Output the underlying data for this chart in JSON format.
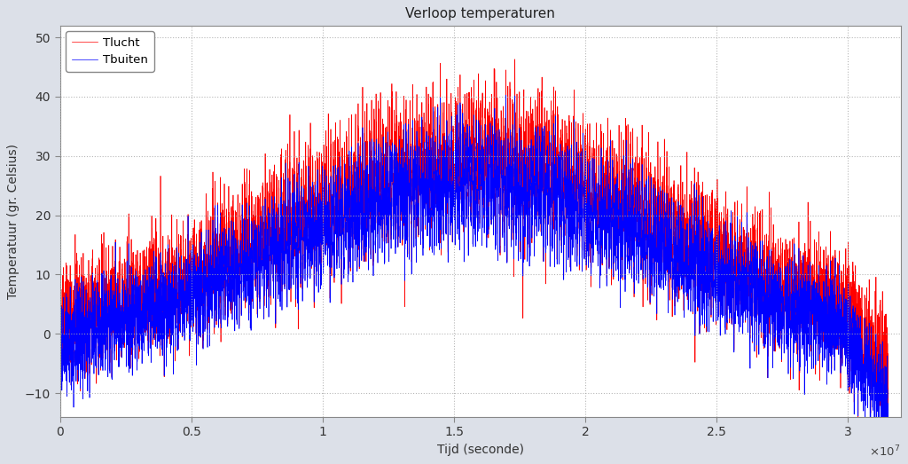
{
  "title": "Verloop temperaturen",
  "xlabel": "Tijd (seconde)",
  "ylabel": "Temperatuur (gr. Celsius)",
  "legend_tlucht": "Tlucht",
  "legend_tbuiten": "Tbuiten",
  "color_tlucht": "#FF0000",
  "color_tbuiten": "#0000FF",
  "xlim": [
    0,
    32000000.0
  ],
  "ylim": [
    -14,
    52
  ],
  "yticks": [
    -10,
    0,
    10,
    20,
    30,
    40,
    50
  ],
  "xticks": [
    0,
    5000000,
    10000000,
    15000000,
    20000000,
    25000000,
    30000000
  ],
  "xtick_labels": [
    "0",
    "0.5",
    "1",
    "1.5",
    "2",
    "2.5",
    "3"
  ],
  "background_color": "#dce0e8",
  "plot_bg_color": "#ffffff",
  "grid_color": "#aaaaaa",
  "n_points": 8760,
  "seed": 12345
}
